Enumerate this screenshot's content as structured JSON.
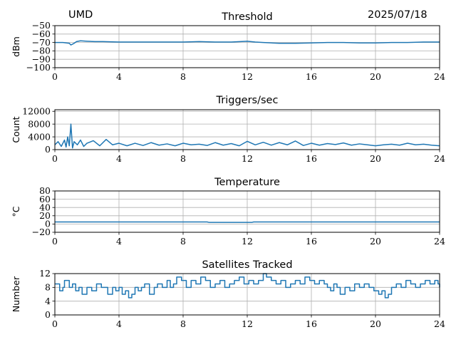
{
  "header": {
    "site": "UMD",
    "date": "2025/07/18"
  },
  "x_tick_labels": [
    "0",
    "4",
    "8",
    "12",
    "16",
    "20",
    "24"
  ],
  "colors": {
    "series": "#1f77b4",
    "grid": "#b0b0b0",
    "axis": "#000000",
    "background": "#ffffff"
  },
  "chart_data": [
    {
      "type": "line",
      "title": "Threshold",
      "xlabel": "",
      "ylabel": "dBm",
      "xlim": [
        0,
        24
      ],
      "ylim": [
        -100,
        -50
      ],
      "y_tick_labels": [
        "−100",
        "−90",
        "−80",
        "−70",
        "−60",
        "−50"
      ],
      "grid": true,
      "series": [
        {
          "x": [
            0,
            0.5,
            0.9,
            1.0,
            1.2,
            1.35,
            1.6,
            2.0,
            2.5,
            3,
            4,
            5,
            6,
            7,
            8,
            9,
            10,
            11,
            12,
            12.5,
            13,
            14,
            15,
            16,
            17,
            18,
            19,
            20,
            21,
            22,
            23,
            24
          ],
          "values": [
            -70,
            -70,
            -71,
            -73,
            -71,
            -69,
            -68,
            -68.5,
            -69,
            -69,
            -69.5,
            -69.5,
            -69.5,
            -69.5,
            -69.5,
            -69,
            -69.5,
            -69.5,
            -68.5,
            -69.5,
            -70,
            -71,
            -71,
            -70.5,
            -70,
            -70,
            -70.5,
            -70.5,
            -70,
            -70,
            -69.5,
            -69.5
          ]
        }
      ]
    },
    {
      "type": "line",
      "title": "Triggers/sec",
      "xlabel": "",
      "ylabel": "Count",
      "xlim": [
        0,
        24
      ],
      "ylim": [
        0,
        12500
      ],
      "y_tick_labels": [
        "0",
        "4000",
        "8000",
        "12000"
      ],
      "grid": true,
      "series": [
        {
          "x": [
            0,
            0.2,
            0.4,
            0.6,
            0.7,
            0.8,
            0.9,
            1.0,
            1.1,
            1.2,
            1.4,
            1.6,
            1.8,
            2.0,
            2.4,
            2.8,
            3.2,
            3.6,
            4.0,
            4.5,
            5,
            5.5,
            6,
            6.5,
            7,
            7.5,
            8,
            8.5,
            9,
            9.5,
            10,
            10.5,
            11,
            11.5,
            12,
            12.5,
            13,
            13.5,
            14,
            14.5,
            15,
            15.5,
            16,
            16.5,
            17,
            17.5,
            18,
            18.5,
            19,
            19.5,
            20,
            20.5,
            21,
            21.5,
            22,
            22.5,
            23,
            23.5,
            24
          ],
          "values": [
            1500,
            2500,
            1000,
            3000,
            800,
            4000,
            1200,
            8000,
            500,
            2500,
            1500,
            3000,
            1000,
            2000,
            2800,
            1200,
            3200,
            1500,
            2000,
            1200,
            2000,
            1300,
            2200,
            1400,
            1800,
            1200,
            2000,
            1500,
            1700,
            1300,
            2200,
            1400,
            1900,
            1200,
            2600,
            1500,
            2300,
            1400,
            2200,
            1500,
            2700,
            1300,
            2000,
            1400,
            1900,
            1600,
            2100,
            1400,
            1800,
            1500,
            1200,
            1500,
            1700,
            1400,
            2000,
            1500,
            1700,
            1400,
            1200
          ]
        }
      ]
    },
    {
      "type": "line",
      "title": "Temperature",
      "xlabel": "",
      "ylabel": "°C",
      "xlim": [
        0,
        24
      ],
      "ylim": [
        -20,
        80
      ],
      "y_tick_labels": [
        "−20",
        "0",
        "20",
        "40",
        "60",
        "80"
      ],
      "grid": true,
      "series": [
        {
          "x": [
            0,
            4,
            8,
            9.5,
            9.6,
            12,
            12.3,
            12.4,
            16,
            20,
            24
          ],
          "values": [
            5,
            5,
            5,
            5,
            4,
            4,
            4,
            5,
            5,
            5,
            5
          ]
        }
      ]
    },
    {
      "type": "line",
      "title": "Satellites Tracked",
      "xlabel": "",
      "ylabel": "Number",
      "xlim": [
        0,
        24
      ],
      "ylim": [
        0,
        12
      ],
      "y_tick_labels": [
        "0",
        "4",
        "8",
        "12"
      ],
      "grid": true,
      "step": true,
      "series": [
        {
          "x": [
            0,
            0.3,
            0.5,
            0.6,
            0.9,
            1.1,
            1.3,
            1.5,
            1.7,
            2.0,
            2.3,
            2.6,
            2.9,
            3.1,
            3.3,
            3.6,
            3.8,
            4.0,
            4.2,
            4.4,
            4.6,
            4.8,
            5.0,
            5.2,
            5.4,
            5.6,
            5.9,
            6.2,
            6.4,
            6.7,
            7.0,
            7.2,
            7.4,
            7.6,
            7.9,
            8.2,
            8.5,
            8.8,
            9.1,
            9.4,
            9.7,
            10.0,
            10.3,
            10.6,
            10.9,
            11.2,
            11.5,
            11.8,
            12.1,
            12.4,
            12.7,
            13.0,
            13.2,
            13.5,
            13.8,
            14.1,
            14.4,
            14.7,
            15.0,
            15.3,
            15.6,
            15.9,
            16.2,
            16.5,
            16.8,
            17.0,
            17.2,
            17.4,
            17.6,
            17.8,
            18.1,
            18.4,
            18.7,
            19.0,
            19.3,
            19.6,
            19.9,
            20.2,
            20.4,
            20.6,
            20.8,
            21.0,
            21.3,
            21.6,
            21.9,
            22.2,
            22.5,
            22.8,
            23.1,
            23.4,
            23.7,
            23.9,
            24.0
          ],
          "values": [
            9,
            7,
            8,
            10,
            8,
            9,
            7,
            8,
            6,
            8,
            7,
            9,
            8,
            8,
            6,
            8,
            7,
            8,
            6,
            7,
            5,
            6,
            8,
            7,
            8,
            9,
            6,
            8,
            9,
            8,
            10,
            8,
            9,
            11,
            10,
            8,
            10,
            9,
            11,
            10,
            8,
            9,
            10,
            8,
            9,
            10,
            11,
            9,
            10,
            9,
            10,
            12,
            11,
            10,
            9,
            10,
            8,
            9,
            10,
            9,
            11,
            10,
            9,
            10,
            9,
            8,
            7,
            9,
            8,
            6,
            8,
            7,
            9,
            8,
            9,
            8,
            7,
            6,
            7,
            5,
            6,
            8,
            9,
            8,
            10,
            9,
            8,
            9,
            10,
            9,
            10,
            9,
            8
          ]
        }
      ]
    }
  ]
}
